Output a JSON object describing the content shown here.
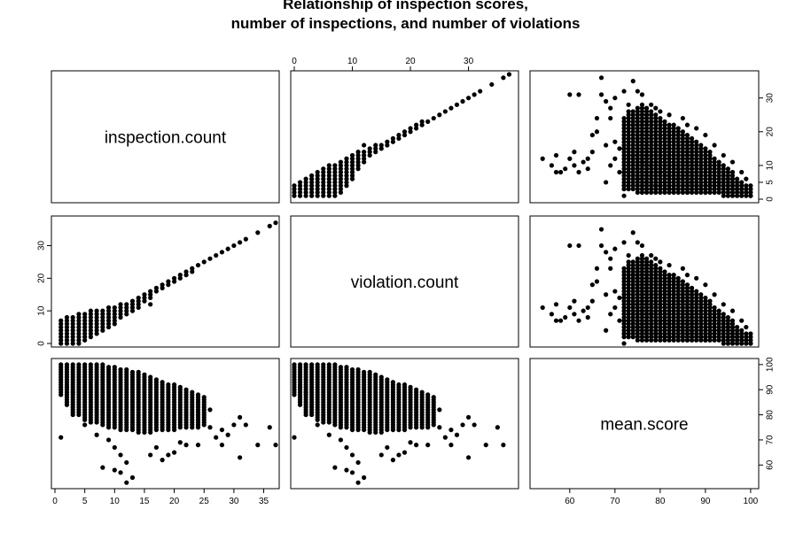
{
  "chart_data": {
    "type": "scatter",
    "title_lines": [
      "Relationship of inspection scores,",
      "number of inspections, and number of violations"
    ],
    "variables": [
      "inspection.count",
      "violation.count",
      "mean.score"
    ],
    "grid": false,
    "ranges": {
      "inspection.count": [
        0,
        37
      ],
      "violation.count": [
        0,
        38
      ],
      "mean.score": [
        52,
        101
      ]
    },
    "ticks": {
      "inspection.count": [
        0,
        5,
        10,
        15,
        20,
        25,
        30,
        35
      ],
      "violation.count": [
        0,
        10,
        20,
        30
      ],
      "violation.count_right": [
        0,
        5,
        10,
        20,
        30
      ],
      "mean.score": [
        60,
        70,
        80,
        90,
        100
      ]
    },
    "inspection_vs_violation": [
      [
        1,
        0
      ],
      [
        1,
        1
      ],
      [
        1,
        2
      ],
      [
        1,
        3
      ],
      [
        1,
        4
      ],
      [
        1,
        5
      ],
      [
        1,
        6
      ],
      [
        1,
        7
      ],
      [
        2,
        0
      ],
      [
        2,
        1
      ],
      [
        2,
        2
      ],
      [
        2,
        3
      ],
      [
        2,
        4
      ],
      [
        2,
        5
      ],
      [
        2,
        6
      ],
      [
        2,
        7
      ],
      [
        2,
        8
      ],
      [
        3,
        0
      ],
      [
        3,
        1
      ],
      [
        3,
        2
      ],
      [
        3,
        3
      ],
      [
        3,
        4
      ],
      [
        3,
        5
      ],
      [
        3,
        6
      ],
      [
        3,
        7
      ],
      [
        3,
        8
      ],
      [
        4,
        0
      ],
      [
        4,
        1
      ],
      [
        4,
        2
      ],
      [
        4,
        3
      ],
      [
        4,
        4
      ],
      [
        4,
        5
      ],
      [
        4,
        6
      ],
      [
        4,
        7
      ],
      [
        4,
        8
      ],
      [
        4,
        9
      ],
      [
        5,
        1
      ],
      [
        5,
        2
      ],
      [
        5,
        3
      ],
      [
        5,
        4
      ],
      [
        5,
        5
      ],
      [
        5,
        6
      ],
      [
        5,
        7
      ],
      [
        5,
        8
      ],
      [
        5,
        9
      ],
      [
        6,
        2
      ],
      [
        6,
        3
      ],
      [
        6,
        4
      ],
      [
        6,
        5
      ],
      [
        6,
        6
      ],
      [
        6,
        7
      ],
      [
        6,
        8
      ],
      [
        6,
        9
      ],
      [
        6,
        10
      ],
      [
        7,
        3
      ],
      [
        7,
        4
      ],
      [
        7,
        5
      ],
      [
        7,
        6
      ],
      [
        7,
        7
      ],
      [
        7,
        8
      ],
      [
        7,
        9
      ],
      [
        7,
        10
      ],
      [
        8,
        4
      ],
      [
        8,
        5
      ],
      [
        8,
        6
      ],
      [
        8,
        7
      ],
      [
        8,
        8
      ],
      [
        8,
        9
      ],
      [
        8,
        10
      ],
      [
        9,
        5
      ],
      [
        9,
        6
      ],
      [
        9,
        7
      ],
      [
        9,
        8
      ],
      [
        9,
        9
      ],
      [
        9,
        10
      ],
      [
        9,
        11
      ],
      [
        10,
        6
      ],
      [
        10,
        7
      ],
      [
        10,
        8
      ],
      [
        10,
        9
      ],
      [
        10,
        10
      ],
      [
        10,
        11
      ],
      [
        11,
        8
      ],
      [
        11,
        9
      ],
      [
        11,
        10
      ],
      [
        11,
        11
      ],
      [
        11,
        12
      ],
      [
        12,
        9
      ],
      [
        12,
        10
      ],
      [
        12,
        11
      ],
      [
        12,
        12
      ],
      [
        13,
        10
      ],
      [
        13,
        11
      ],
      [
        13,
        12
      ],
      [
        13,
        13
      ],
      [
        14,
        11
      ],
      [
        14,
        12
      ],
      [
        14,
        13
      ],
      [
        14,
        14
      ],
      [
        15,
        13
      ],
      [
        15,
        14
      ],
      [
        15,
        15
      ],
      [
        16,
        12
      ],
      [
        16,
        14
      ],
      [
        16,
        15
      ],
      [
        16,
        16
      ],
      [
        17,
        16
      ],
      [
        17,
        17
      ],
      [
        18,
        17
      ],
      [
        18,
        18
      ],
      [
        19,
        18
      ],
      [
        19,
        19
      ],
      [
        20,
        19
      ],
      [
        20,
        20
      ],
      [
        21,
        20
      ],
      [
        21,
        21
      ],
      [
        22,
        21
      ],
      [
        22,
        22
      ],
      [
        23,
        22
      ],
      [
        23,
        23
      ],
      [
        24,
        24
      ],
      [
        25,
        25
      ],
      [
        26,
        26
      ],
      [
        27,
        27
      ],
      [
        28,
        28
      ],
      [
        29,
        29
      ],
      [
        30,
        30
      ],
      [
        31,
        31
      ],
      [
        32,
        32
      ],
      [
        34,
        34
      ],
      [
        36,
        36
      ],
      [
        37,
        37
      ]
    ],
    "inspection_vs_score": [
      {
        "x": 1,
        "y_range": [
          88,
          100
        ]
      },
      {
        "x": 2,
        "y_range": [
          84,
          100
        ]
      },
      {
        "x": 3,
        "y_range": [
          80,
          100
        ]
      },
      {
        "x": 4,
        "y_range": [
          80,
          100
        ]
      },
      {
        "x": 5,
        "y_range": [
          78,
          100
        ]
      },
      {
        "x": 6,
        "y_range": [
          77,
          100
        ]
      },
      {
        "x": 7,
        "y_range": [
          77,
          100
        ]
      },
      {
        "x": 8,
        "y_range": [
          76,
          100
        ]
      },
      {
        "x": 9,
        "y_range": [
          75,
          99
        ]
      },
      {
        "x": 10,
        "y_range": [
          75,
          99
        ]
      },
      {
        "x": 11,
        "y_range": [
          74,
          98
        ]
      },
      {
        "x": 12,
        "y_range": [
          74,
          98
        ]
      },
      {
        "x": 13,
        "y_range": [
          74,
          97
        ]
      },
      {
        "x": 14,
        "y_range": [
          73,
          97
        ]
      },
      {
        "x": 15,
        "y_range": [
          73,
          96
        ]
      },
      {
        "x": 16,
        "y_range": [
          73,
          95
        ]
      },
      {
        "x": 17,
        "y_range": [
          74,
          94
        ]
      },
      {
        "x": 18,
        "y_range": [
          74,
          93
        ]
      },
      {
        "x": 19,
        "y_range": [
          74,
          92
        ]
      },
      {
        "x": 20,
        "y_range": [
          74,
          92
        ]
      },
      {
        "x": 21,
        "y_range": [
          75,
          91
        ]
      },
      {
        "x": 22,
        "y_range": [
          75,
          90
        ]
      },
      {
        "x": 23,
        "y_range": [
          75,
          89
        ]
      },
      {
        "x": 24,
        "y_range": [
          75,
          88
        ]
      },
      {
        "x": 25,
        "y_range": [
          76,
          87
        ]
      }
    ],
    "inspection_vs_score_extra": [
      [
        1,
        71
      ],
      [
        2,
        91
      ],
      [
        3,
        89
      ],
      [
        5,
        76
      ],
      [
        7,
        72
      ],
      [
        9,
        70
      ],
      [
        10,
        67
      ],
      [
        11,
        64
      ],
      [
        12,
        61
      ],
      [
        8,
        59
      ],
      [
        13,
        55
      ],
      [
        10,
        58
      ],
      [
        11,
        57
      ],
      [
        16,
        64
      ],
      [
        17,
        67
      ],
      [
        18,
        62
      ],
      [
        20,
        65
      ],
      [
        21,
        69
      ],
      [
        22,
        68
      ],
      [
        24,
        68
      ],
      [
        26,
        82
      ],
      [
        26,
        75
      ],
      [
        27,
        71
      ],
      [
        28,
        74
      ],
      [
        28,
        68
      ],
      [
        29,
        72
      ],
      [
        30,
        76
      ],
      [
        31,
        63
      ],
      [
        31,
        79
      ],
      [
        32,
        76
      ],
      [
        34,
        68
      ],
      [
        36,
        75
      ],
      [
        37,
        68
      ],
      [
        12,
        53
      ],
      [
        19,
        64
      ]
    ],
    "score_vs_violation": [
      [
        54,
        12
      ],
      [
        56,
        10
      ],
      [
        57,
        13
      ],
      [
        58,
        8
      ],
      [
        59,
        9
      ],
      [
        60,
        31
      ],
      [
        61,
        10
      ],
      [
        62,
        31
      ],
      [
        62,
        8
      ],
      [
        63,
        11
      ],
      [
        64,
        12
      ],
      [
        65,
        19
      ],
      [
        66,
        20
      ],
      [
        66,
        24
      ],
      [
        67,
        36
      ],
      [
        67,
        31
      ],
      [
        68,
        29
      ],
      [
        68,
        16
      ],
      [
        69,
        27
      ],
      [
        69,
        24
      ],
      [
        70,
        30
      ],
      [
        71,
        8
      ],
      [
        72,
        32
      ],
      [
        72,
        1
      ],
      [
        74,
        35
      ],
      [
        73,
        28
      ],
      [
        75,
        32
      ],
      [
        76,
        31
      ],
      [
        78,
        28
      ],
      [
        79,
        27
      ],
      [
        70,
        12
      ],
      [
        65,
        14
      ],
      [
        60,
        12
      ],
      [
        57,
        8
      ],
      [
        61,
        14
      ],
      [
        64,
        9
      ],
      [
        68,
        5
      ],
      [
        72,
        4
      ],
      [
        69,
        10
      ],
      [
        71,
        15
      ],
      [
        74,
        22
      ],
      [
        77,
        25
      ],
      [
        80,
        26
      ],
      [
        82,
        25
      ],
      [
        85,
        24
      ],
      [
        86,
        22
      ],
      [
        88,
        21
      ],
      [
        90,
        19
      ],
      [
        92,
        16
      ],
      [
        94,
        13
      ],
      [
        96,
        11
      ],
      [
        98,
        8
      ],
      [
        99,
        6
      ],
      [
        100,
        4
      ],
      [
        89,
        3
      ],
      [
        91,
        4
      ],
      [
        93,
        5
      ],
      [
        95,
        6
      ],
      [
        97,
        3
      ],
      [
        99,
        2
      ],
      [
        100,
        1
      ],
      [
        87,
        5
      ],
      [
        84,
        6
      ],
      [
        82,
        7
      ],
      [
        80,
        8
      ],
      [
        78,
        10
      ],
      [
        76,
        11
      ],
      [
        74,
        13
      ],
      [
        72,
        15
      ],
      [
        70,
        17
      ],
      [
        75,
        6
      ],
      [
        73,
        8
      ],
      [
        77,
        5
      ],
      [
        79,
        4
      ],
      [
        81,
        3
      ],
      [
        83,
        3
      ],
      [
        86,
        2
      ],
      [
        90,
        2
      ],
      [
        94,
        1
      ]
    ],
    "score_vs_violation_band": [
      {
        "x": 72,
        "y_range": [
          3,
          24
        ]
      },
      {
        "x": 73,
        "y_range": [
          3,
          26
        ]
      },
      {
        "x": 74,
        "y_range": [
          3,
          26
        ]
      },
      {
        "x": 75,
        "y_range": [
          2,
          27
        ]
      },
      {
        "x": 76,
        "y_range": [
          2,
          28
        ]
      },
      {
        "x": 77,
        "y_range": [
          2,
          27
        ]
      },
      {
        "x": 78,
        "y_range": [
          2,
          26
        ]
      },
      {
        "x": 79,
        "y_range": [
          2,
          25
        ]
      },
      {
        "x": 80,
        "y_range": [
          2,
          24
        ]
      },
      {
        "x": 81,
        "y_range": [
          2,
          23
        ]
      },
      {
        "x": 82,
        "y_range": [
          2,
          22
        ]
      },
      {
        "x": 83,
        "y_range": [
          2,
          22
        ]
      },
      {
        "x": 84,
        "y_range": [
          2,
          21
        ]
      },
      {
        "x": 85,
        "y_range": [
          2,
          20
        ]
      },
      {
        "x": 86,
        "y_range": [
          2,
          19
        ]
      },
      {
        "x": 87,
        "y_range": [
          2,
          18
        ]
      },
      {
        "x": 88,
        "y_range": [
          2,
          17
        ]
      },
      {
        "x": 89,
        "y_range": [
          2,
          16
        ]
      },
      {
        "x": 90,
        "y_range": [
          2,
          15
        ]
      },
      {
        "x": 91,
        "y_range": [
          2,
          14
        ]
      },
      {
        "x": 92,
        "y_range": [
          2,
          12
        ]
      },
      {
        "x": 93,
        "y_range": [
          2,
          11
        ]
      },
      {
        "x": 94,
        "y_range": [
          2,
          10
        ]
      },
      {
        "x": 95,
        "y_range": [
          1,
          9
        ]
      },
      {
        "x": 96,
        "y_range": [
          1,
          8
        ]
      },
      {
        "x": 97,
        "y_range": [
          1,
          6
        ]
      },
      {
        "x": 98,
        "y_range": [
          1,
          5
        ]
      },
      {
        "x": 99,
        "y_range": [
          1,
          4
        ]
      },
      {
        "x": 100,
        "y_range": [
          1,
          3
        ]
      }
    ]
  }
}
